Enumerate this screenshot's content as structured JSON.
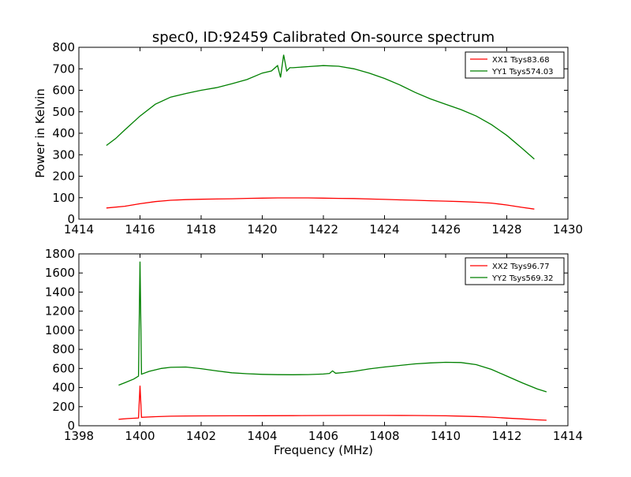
{
  "title": "spec0, ID:92459 Calibrated On-source spectrum",
  "chart_data": [
    {
      "type": "line",
      "title": "spec0, ID:92459 Calibrated On-source spectrum",
      "xlabel": "",
      "ylabel": "Power in Kelvin",
      "xlim": [
        1414,
        1430
      ],
      "ylim": [
        0,
        800
      ],
      "xticks": [
        "1414",
        "1416",
        "1418",
        "1420",
        "1422",
        "1424",
        "1426",
        "1428",
        "1430"
      ],
      "yticks": [
        "0",
        "100",
        "200",
        "300",
        "400",
        "500",
        "600",
        "700",
        "800"
      ],
      "legend_position": "top-right",
      "grid": false,
      "series": [
        {
          "name": "XX1 Tsys83.68",
          "color": "#ff0000",
          "x": [
            1414.9,
            1415.5,
            1416.0,
            1416.5,
            1417.0,
            1417.5,
            1418.0,
            1418.5,
            1419.0,
            1419.5,
            1420.0,
            1420.5,
            1421.0,
            1421.5,
            1422.0,
            1422.5,
            1423.0,
            1423.5,
            1424.0,
            1424.5,
            1425.0,
            1425.5,
            1426.0,
            1426.5,
            1427.0,
            1427.5,
            1428.0,
            1428.5,
            1428.9
          ],
          "values": [
            52,
            60,
            72,
            82,
            88,
            91,
            93,
            94,
            95,
            97,
            98,
            99,
            99,
            99,
            98,
            97,
            96,
            94,
            92,
            90,
            88,
            86,
            84,
            82,
            79,
            75,
            66,
            55,
            47
          ]
        },
        {
          "name": "YY1 Tsys574.03",
          "color": "#008000",
          "x": [
            1414.9,
            1415.2,
            1415.5,
            1416.0,
            1416.5,
            1417.0,
            1417.5,
            1418.0,
            1418.5,
            1419.0,
            1419.5,
            1420.0,
            1420.3,
            1420.5,
            1420.6,
            1420.7,
            1420.8,
            1420.9,
            1421.0,
            1421.5,
            1422.0,
            1422.5,
            1423.0,
            1423.5,
            1424.0,
            1424.5,
            1425.0,
            1425.5,
            1426.0,
            1426.5,
            1427.0,
            1427.5,
            1428.0,
            1428.5,
            1428.9
          ],
          "values": [
            343,
            375,
            415,
            480,
            535,
            568,
            585,
            600,
            612,
            630,
            650,
            680,
            690,
            715,
            660,
            765,
            690,
            705,
            705,
            710,
            715,
            712,
            700,
            680,
            655,
            625,
            590,
            560,
            535,
            510,
            480,
            440,
            390,
            330,
            280
          ]
        }
      ]
    },
    {
      "type": "line",
      "title": "",
      "xlabel": "Frequency (MHz)",
      "ylabel": "",
      "xlim": [
        1398,
        1414
      ],
      "ylim": [
        0,
        1800
      ],
      "xticks": [
        "1398",
        "1400",
        "1402",
        "1404",
        "1406",
        "1408",
        "1410",
        "1412",
        "1414"
      ],
      "yticks": [
        "0",
        "200",
        "400",
        "600",
        "800",
        "1000",
        "1200",
        "1400",
        "1600",
        "1800"
      ],
      "legend_position": "top-right",
      "grid": false,
      "series": [
        {
          "name": "XX2 Tsys96.77",
          "color": "#ff0000",
          "x": [
            1399.3,
            1399.6,
            1399.95,
            1400.0,
            1400.05,
            1400.5,
            1401.0,
            1401.5,
            1402.0,
            1403.0,
            1404.0,
            1405.0,
            1406.0,
            1407.0,
            1408.0,
            1409.0,
            1410.0,
            1410.5,
            1411.0,
            1411.5,
            1412.0,
            1412.5,
            1413.0,
            1413.3
          ],
          "values": [
            68,
            75,
            82,
            420,
            88,
            95,
            100,
            102,
            103,
            104,
            105,
            106,
            107,
            108,
            108,
            107,
            104,
            101,
            97,
            90,
            80,
            72,
            62,
            58
          ]
        },
        {
          "name": "YY2 Tsys569.32",
          "color": "#008000",
          "x": [
            1399.3,
            1399.5,
            1399.8,
            1399.95,
            1400.0,
            1400.05,
            1400.3,
            1400.7,
            1401.0,
            1401.5,
            1402.0,
            1402.5,
            1403.0,
            1403.5,
            1404.0,
            1404.5,
            1405.0,
            1405.5,
            1406.0,
            1406.2,
            1406.3,
            1406.4,
            1406.7,
            1407.0,
            1407.5,
            1408.0,
            1408.5,
            1409.0,
            1409.5,
            1410.0,
            1410.5,
            1411.0,
            1411.5,
            1412.0,
            1412.5,
            1413.0,
            1413.3
          ],
          "values": [
            425,
            450,
            490,
            520,
            1720,
            540,
            570,
            600,
            612,
            615,
            598,
            575,
            555,
            545,
            538,
            535,
            534,
            536,
            542,
            548,
            575,
            550,
            558,
            570,
            595,
            615,
            632,
            648,
            658,
            665,
            662,
            640,
            590,
            520,
            450,
            385,
            355
          ]
        }
      ]
    }
  ]
}
